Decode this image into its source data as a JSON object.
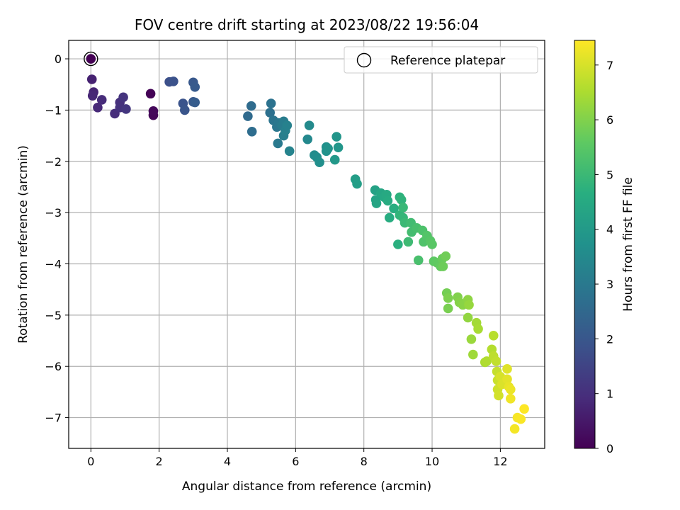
{
  "chart_data": {
    "type": "scatter",
    "title": "FOV centre drift starting at 2023/08/22 19:56:04",
    "xlabel": "Angular distance from reference (arcmin)",
    "ylabel": "Rotation from reference (arcmin)",
    "xlim": [
      -0.65,
      13.3
    ],
    "ylim": [
      -7.6,
      0.36
    ],
    "xticks": [
      0,
      2,
      4,
      6,
      8,
      10,
      12
    ],
    "yticks": [
      0,
      -1,
      -2,
      -3,
      -4,
      -5,
      -6,
      -7
    ],
    "grid": true,
    "legend": {
      "position": "top-right",
      "entries": [
        "Reference platepar"
      ]
    },
    "colorbar": {
      "label": "Hours from first FF file",
      "range": [
        0,
        7.45
      ],
      "ticks": [
        0,
        1,
        2,
        3,
        4,
        5,
        6,
        7
      ],
      "colormap": "viridis"
    },
    "reference_point": {
      "x": 0,
      "y": 0
    },
    "points": [
      {
        "x": 0.0,
        "y": 0.0,
        "t": 0.0
      },
      {
        "x": 1.75,
        "y": -0.68,
        "t": 0.05
      },
      {
        "x": 1.83,
        "y": -1.1,
        "t": 0.1
      },
      {
        "x": 1.83,
        "y": -1.02,
        "t": 0.15
      },
      {
        "x": 0.03,
        "y": -0.4,
        "t": 0.7
      },
      {
        "x": 0.08,
        "y": -0.65,
        "t": 0.75
      },
      {
        "x": 0.05,
        "y": -0.72,
        "t": 0.8
      },
      {
        "x": 0.2,
        "y": -0.95,
        "t": 0.85
      },
      {
        "x": 0.32,
        "y": -0.8,
        "t": 0.9
      },
      {
        "x": 0.7,
        "y": -1.07,
        "t": 0.95
      },
      {
        "x": 0.85,
        "y": -0.85,
        "t": 1.0
      },
      {
        "x": 0.85,
        "y": -0.95,
        "t": 1.05
      },
      {
        "x": 0.95,
        "y": -0.75,
        "t": 1.1
      },
      {
        "x": 1.03,
        "y": -0.98,
        "t": 1.15
      },
      {
        "x": 2.3,
        "y": -0.45,
        "t": 1.8
      },
      {
        "x": 2.42,
        "y": -0.44,
        "t": 1.85
      },
      {
        "x": 2.7,
        "y": -0.87,
        "t": 1.9
      },
      {
        "x": 2.75,
        "y": -1.0,
        "t": 1.95
      },
      {
        "x": 3.0,
        "y": -0.84,
        "t": 2.0
      },
      {
        "x": 3.0,
        "y": -0.46,
        "t": 2.05
      },
      {
        "x": 3.05,
        "y": -0.55,
        "t": 2.1
      },
      {
        "x": 3.05,
        "y": -0.85,
        "t": 2.15
      },
      {
        "x": 4.6,
        "y": -1.12,
        "t": 2.55
      },
      {
        "x": 4.7,
        "y": -0.92,
        "t": 2.6
      },
      {
        "x": 4.72,
        "y": -1.42,
        "t": 2.65
      },
      {
        "x": 5.25,
        "y": -1.05,
        "t": 2.75
      },
      {
        "x": 5.28,
        "y": -0.87,
        "t": 2.8
      },
      {
        "x": 5.35,
        "y": -1.2,
        "t": 2.85
      },
      {
        "x": 5.45,
        "y": -1.33,
        "t": 2.9
      },
      {
        "x": 5.5,
        "y": -1.25,
        "t": 2.95
      },
      {
        "x": 5.48,
        "y": -1.65,
        "t": 3.0
      },
      {
        "x": 5.6,
        "y": -1.3,
        "t": 3.05
      },
      {
        "x": 5.65,
        "y": -1.22,
        "t": 3.1
      },
      {
        "x": 5.65,
        "y": -1.5,
        "t": 3.15
      },
      {
        "x": 5.7,
        "y": -1.4,
        "t": 3.2
      },
      {
        "x": 5.75,
        "y": -1.3,
        "t": 3.25
      },
      {
        "x": 5.82,
        "y": -1.8,
        "t": 3.3
      },
      {
        "x": 6.35,
        "y": -1.57,
        "t": 3.45
      },
      {
        "x": 6.4,
        "y": -1.3,
        "t": 3.5
      },
      {
        "x": 6.55,
        "y": -1.88,
        "t": 3.55
      },
      {
        "x": 6.62,
        "y": -1.92,
        "t": 3.6
      },
      {
        "x": 6.7,
        "y": -2.02,
        "t": 3.65
      },
      {
        "x": 6.9,
        "y": -1.72,
        "t": 3.7
      },
      {
        "x": 6.9,
        "y": -1.8,
        "t": 3.75
      },
      {
        "x": 6.95,
        "y": -1.75,
        "t": 3.8
      },
      {
        "x": 7.2,
        "y": -1.52,
        "t": 3.85
      },
      {
        "x": 7.25,
        "y": -1.73,
        "t": 3.9
      },
      {
        "x": 7.15,
        "y": -1.97,
        "t": 3.95
      },
      {
        "x": 7.75,
        "y": -2.35,
        "t": 4.1
      },
      {
        "x": 7.8,
        "y": -2.44,
        "t": 4.15
      },
      {
        "x": 8.33,
        "y": -2.56,
        "t": 4.25
      },
      {
        "x": 8.35,
        "y": -2.75,
        "t": 4.3
      },
      {
        "x": 8.37,
        "y": -2.82,
        "t": 4.35
      },
      {
        "x": 8.5,
        "y": -2.62,
        "t": 4.4
      },
      {
        "x": 8.6,
        "y": -2.7,
        "t": 4.45
      },
      {
        "x": 8.67,
        "y": -2.65,
        "t": 4.5
      },
      {
        "x": 8.7,
        "y": -2.77,
        "t": 4.55
      },
      {
        "x": 8.75,
        "y": -3.1,
        "t": 4.6
      },
      {
        "x": 8.88,
        "y": -2.92,
        "t": 4.65
      },
      {
        "x": 9.0,
        "y": -3.62,
        "t": 4.7
      },
      {
        "x": 9.05,
        "y": -2.7,
        "t": 4.75
      },
      {
        "x": 9.1,
        "y": -2.75,
        "t": 4.8
      },
      {
        "x": 9.05,
        "y": -3.05,
        "t": 4.85
      },
      {
        "x": 9.15,
        "y": -3.1,
        "t": 4.9
      },
      {
        "x": 9.15,
        "y": -2.9,
        "t": 4.95
      },
      {
        "x": 9.2,
        "y": -3.2,
        "t": 5.0
      },
      {
        "x": 9.3,
        "y": -3.57,
        "t": 5.05
      },
      {
        "x": 9.38,
        "y": -3.2,
        "t": 5.1
      },
      {
        "x": 9.4,
        "y": -3.38,
        "t": 5.15
      },
      {
        "x": 9.55,
        "y": -3.3,
        "t": 5.2
      },
      {
        "x": 9.6,
        "y": -3.93,
        "t": 5.25
      },
      {
        "x": 9.72,
        "y": -3.35,
        "t": 5.3
      },
      {
        "x": 9.75,
        "y": -3.57,
        "t": 5.35
      },
      {
        "x": 9.85,
        "y": -3.45,
        "t": 5.4
      },
      {
        "x": 9.95,
        "y": -3.55,
        "t": 5.45
      },
      {
        "x": 10.0,
        "y": -3.62,
        "t": 5.5
      },
      {
        "x": 10.05,
        "y": -3.95,
        "t": 5.55
      },
      {
        "x": 10.15,
        "y": -3.98,
        "t": 5.6
      },
      {
        "x": 10.25,
        "y": -4.05,
        "t": 5.65
      },
      {
        "x": 10.3,
        "y": -3.9,
        "t": 5.7
      },
      {
        "x": 10.32,
        "y": -4.05,
        "t": 5.75
      },
      {
        "x": 10.4,
        "y": -3.85,
        "t": 5.8
      },
      {
        "x": 10.43,
        "y": -4.57,
        "t": 5.85
      },
      {
        "x": 10.47,
        "y": -4.87,
        "t": 5.9
      },
      {
        "x": 10.47,
        "y": -4.67,
        "t": 5.95
      },
      {
        "x": 10.75,
        "y": -4.65,
        "t": 6.0
      },
      {
        "x": 10.8,
        "y": -4.75,
        "t": 6.05
      },
      {
        "x": 10.9,
        "y": -4.8,
        "t": 6.1
      },
      {
        "x": 11.05,
        "y": -4.7,
        "t": 6.15
      },
      {
        "x": 11.05,
        "y": -5.05,
        "t": 6.2
      },
      {
        "x": 11.08,
        "y": -4.8,
        "t": 6.25
      },
      {
        "x": 11.15,
        "y": -5.47,
        "t": 6.3
      },
      {
        "x": 11.2,
        "y": -5.77,
        "t": 6.35
      },
      {
        "x": 11.3,
        "y": -5.15,
        "t": 6.4
      },
      {
        "x": 11.35,
        "y": -5.27,
        "t": 6.45
      },
      {
        "x": 11.55,
        "y": -5.92,
        "t": 6.5
      },
      {
        "x": 11.6,
        "y": -5.9,
        "t": 6.55
      },
      {
        "x": 11.75,
        "y": -5.67,
        "t": 6.6
      },
      {
        "x": 11.8,
        "y": -5.4,
        "t": 6.65
      },
      {
        "x": 11.8,
        "y": -5.8,
        "t": 6.7
      },
      {
        "x": 11.88,
        "y": -5.9,
        "t": 6.75
      },
      {
        "x": 11.9,
        "y": -6.1,
        "t": 6.8
      },
      {
        "x": 11.92,
        "y": -6.27,
        "t": 6.85
      },
      {
        "x": 11.92,
        "y": -6.45,
        "t": 6.9
      },
      {
        "x": 11.95,
        "y": -6.57,
        "t": 6.95
      },
      {
        "x": 12.0,
        "y": -6.2,
        "t": 7.0
      },
      {
        "x": 12.05,
        "y": -6.35,
        "t": 7.05
      },
      {
        "x": 12.2,
        "y": -6.05,
        "t": 7.1
      },
      {
        "x": 12.2,
        "y": -6.25,
        "t": 7.15
      },
      {
        "x": 12.25,
        "y": -6.4,
        "t": 7.2
      },
      {
        "x": 12.3,
        "y": -6.45,
        "t": 7.25
      },
      {
        "x": 12.3,
        "y": -6.63,
        "t": 7.3
      },
      {
        "x": 12.42,
        "y": -7.22,
        "t": 7.35
      },
      {
        "x": 12.5,
        "y": -7.0,
        "t": 7.38
      },
      {
        "x": 12.6,
        "y": -7.03,
        "t": 7.4
      },
      {
        "x": 12.7,
        "y": -6.83,
        "t": 7.45
      }
    ]
  }
}
